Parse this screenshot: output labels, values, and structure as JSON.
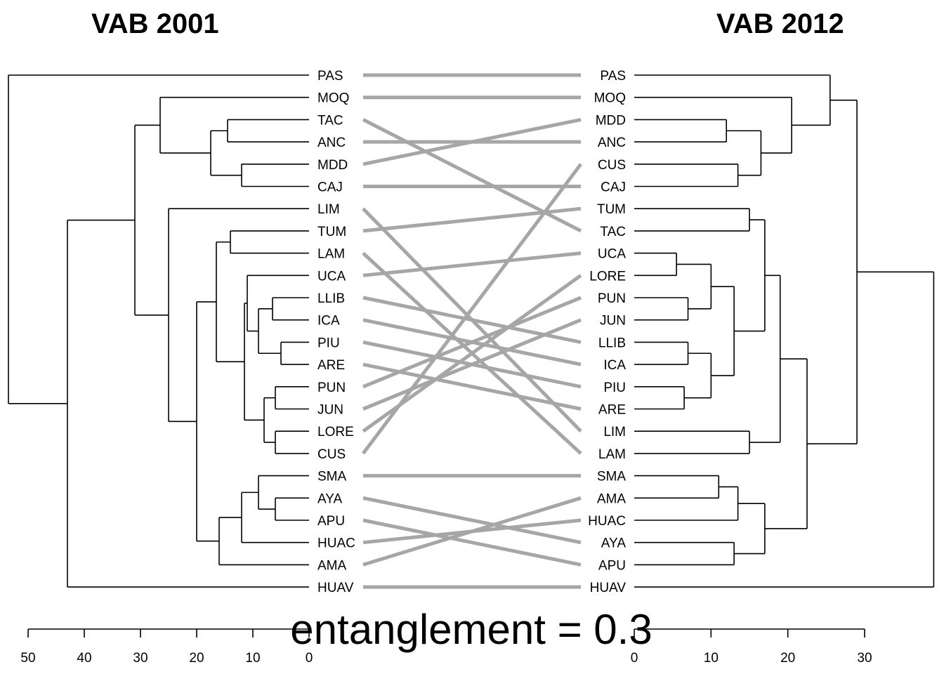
{
  "chart_data": {
    "type": "tanglegram",
    "left": {
      "title": "VAB 2001",
      "leaves": [
        "PAS",
        "MOQ",
        "TAC",
        "ANC",
        "MDD",
        "CAJ",
        "LIM",
        "TUM",
        "LAM",
        "UCA",
        "LLIB",
        "ICA",
        "PIU",
        "ARE",
        "PUN",
        "JUN",
        "LORE",
        "CUS",
        "SMA",
        "AYA",
        "APU",
        "HUAC",
        "AMA",
        "HUAV"
      ],
      "axis_ticks": [
        50,
        40,
        30,
        20,
        10,
        0
      ],
      "merges": [
        [
          "TAC",
          "ANC",
          14.5
        ],
        [
          "MDD",
          "CAJ",
          12
        ],
        [
          "TAC",
          "MDD",
          17.5
        ],
        [
          "MOQ",
          "TAC",
          26.5
        ],
        [
          "TUM",
          "LAM",
          14
        ],
        [
          "LLIB",
          "ICA",
          6.5
        ],
        [
          "PIU",
          "ARE",
          5
        ],
        [
          "LLIB",
          "PIU",
          9
        ],
        [
          "UCA",
          "LLIB",
          11
        ],
        [
          "PUN",
          "JUN",
          6
        ],
        [
          "LORE",
          "CUS",
          6
        ],
        [
          "PUN",
          "LORE",
          8
        ],
        [
          "UCA",
          "PUN",
          11.5
        ],
        [
          "TUM",
          "UCA",
          16.5
        ],
        [
          "SMA",
          "AYA",
          9
        ],
        [
          "SMA",
          "APU",
          6
        ],
        [
          "SMA",
          "HUAC",
          12
        ],
        [
          "SMA",
          "AMA",
          16
        ],
        [
          "TUM",
          "SMA",
          20
        ],
        [
          "LIM",
          "TUM",
          25
        ],
        [
          "MOQ",
          "LIM",
          31
        ],
        [
          "PAS",
          "MOQ",
          53.5
        ],
        [
          "PAS",
          "HUAV",
          43
        ]
      ],
      "extra_links": [
        [
          "PAS",
          "HUAV",
          53.5
        ]
      ]
    },
    "right": {
      "title": "VAB 2012",
      "leaves": [
        "PAS",
        "MOQ",
        "MDD",
        "ANC",
        "CUS",
        "CAJ",
        "TUM",
        "TAC",
        "UCA",
        "LORE",
        "PUN",
        "JUN",
        "LLIB",
        "ICA",
        "PIU",
        "ARE",
        "LIM",
        "LAM",
        "SMA",
        "AMA",
        "HUAC",
        "AYA",
        "APU",
        "HUAV"
      ],
      "axis_ticks": [
        0,
        10,
        20,
        30
      ],
      "merges": [
        [
          "MDD",
          "ANC",
          12
        ],
        [
          "CUS",
          "CAJ",
          13.5
        ],
        [
          "MDD",
          "CUS",
          16.5
        ],
        [
          "MOQ",
          "MDD",
          20.5
        ],
        [
          "PAS",
          "MOQ",
          25.5
        ],
        [
          "TUM",
          "TAC",
          15
        ],
        [
          "UCA",
          "LORE",
          5.5
        ],
        [
          "PUN",
          "JUN",
          7
        ],
        [
          "UCA",
          "PUN",
          10
        ],
        [
          "LLIB",
          "ICA",
          7
        ],
        [
          "PIU",
          "ARE",
          6.5
        ],
        [
          "LLIB",
          "PIU",
          10
        ],
        [
          "UCA",
          "LLIB",
          13
        ],
        [
          "TUM",
          "UCA",
          17
        ],
        [
          "LIM",
          "LAM",
          15
        ],
        [
          "TUM",
          "LIM",
          19
        ],
        [
          "SMA",
          "AMA",
          11
        ],
        [
          "SMA",
          "HUAC",
          13.5
        ],
        [
          "AYA",
          "APU",
          13
        ],
        [
          "SMA",
          "AYA",
          17
        ],
        [
          "TUM",
          "SMA",
          23
        ],
        [
          "PAS",
          "TUM",
          28.5
        ],
        [
          "PAS",
          "HUAV",
          39
        ]
      ]
    },
    "entanglement": "entanglement = 0.3"
  },
  "colors": {
    "lines": "#a6a6a6",
    "tree": "#000000"
  }
}
